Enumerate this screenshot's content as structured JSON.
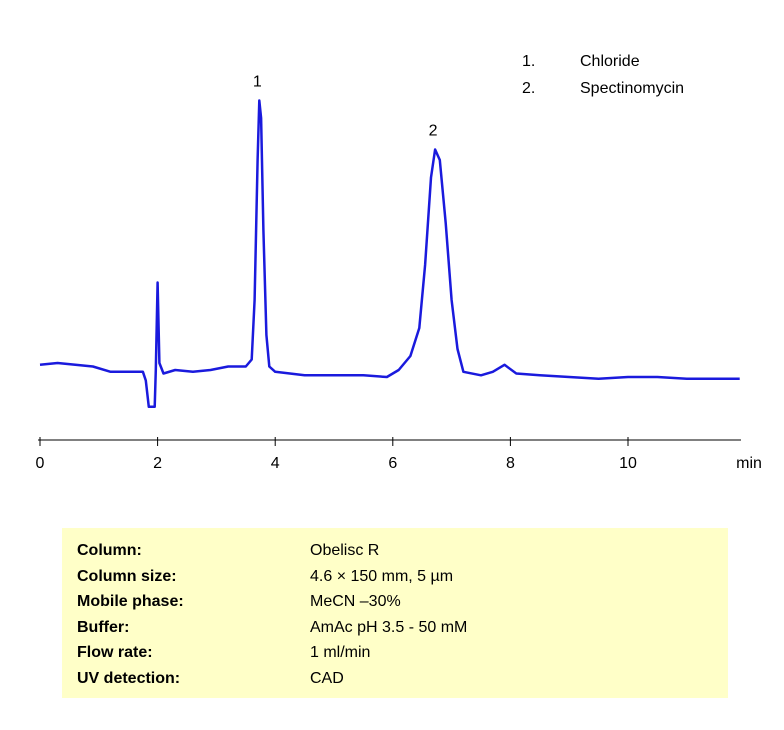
{
  "chart_data": {
    "type": "line",
    "x": [
      0,
      0.3,
      0.6,
      0.9,
      1.2,
      1.5,
      1.75,
      1.8,
      1.85,
      1.95,
      1.97,
      2.0,
      2.03,
      2.1,
      2.3,
      2.6,
      2.9,
      3.2,
      3.5,
      3.6,
      3.65,
      3.7,
      3.73,
      3.76,
      3.8,
      3.85,
      3.9,
      4.0,
      4.5,
      5.0,
      5.5,
      5.9,
      6.1,
      6.3,
      6.45,
      6.55,
      6.65,
      6.72,
      6.8,
      6.9,
      7.0,
      7.1,
      7.2,
      7.5,
      7.7,
      7.9,
      8.1,
      8.5,
      9.0,
      9.5,
      10.0,
      10.5,
      11.0,
      11.5,
      11.9
    ],
    "series": [
      {
        "color": "#1a1add",
        "values": [
          21.5,
          22,
          21.5,
          21,
          19.5,
          19.5,
          19.5,
          17,
          9.5,
          9.5,
          20,
          45,
          22,
          19,
          20,
          19.5,
          20,
          21,
          21,
          23,
          40,
          80,
          97,
          92,
          60,
          30,
          21,
          19.5,
          18.5,
          18.5,
          18.5,
          18,
          20,
          24,
          32,
          50,
          75,
          83,
          80,
          62,
          40,
          26,
          19.5,
          18.5,
          19.5,
          21.5,
          19,
          18.5,
          18,
          17.5,
          18,
          18,
          17.5,
          17.5,
          17.5
        ]
      }
    ],
    "xlim": [
      0,
      12
    ],
    "ylim": [
      0,
      100
    ],
    "xticks": [
      0,
      2,
      4,
      6,
      8,
      10
    ],
    "x_label": "min",
    "annotations": [
      {
        "text": "1",
        "x": 3.73,
        "y": 97
      },
      {
        "text": "2",
        "x": 6.72,
        "y": 83
      }
    ],
    "legend_items": [
      {
        "number": "1.",
        "name": "Chloride"
      },
      {
        "number": "2.",
        "name": "Spectinomycin"
      }
    ]
  },
  "conditions": {
    "rows": [
      [
        "Column:",
        "Obelisc R"
      ],
      [
        "Column size:",
        "4.6 × 150 mm, 5 µm"
      ],
      [
        "Mobile phase:",
        "MeCN –30%"
      ],
      [
        "Buffer:",
        "AmAc pH 3.5 - 50 mM"
      ],
      [
        "Flow rate:",
        "1 ml/min"
      ],
      [
        "UV detection:",
        "CAD"
      ]
    ]
  }
}
